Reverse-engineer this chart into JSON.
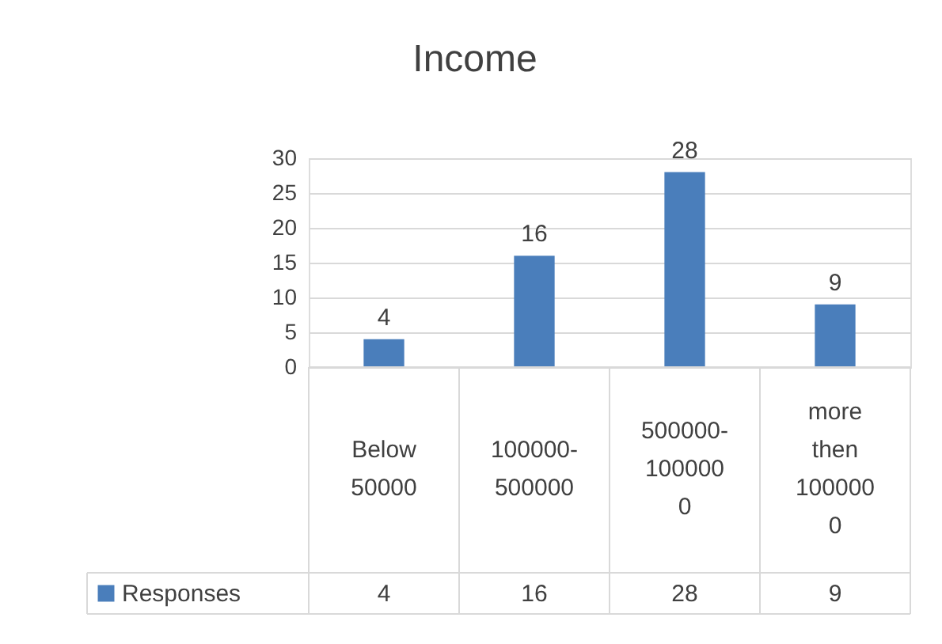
{
  "chart_data": {
    "type": "bar",
    "title": "Income",
    "categories": [
      "Below 50000",
      "100000-500000",
      "500000-1000000",
      "more then 1000000"
    ],
    "series": [
      {
        "name": "Responses",
        "color": "#4a7ebb",
        "values": [
          4,
          16,
          28,
          9
        ],
        "value_labels": [
          "4",
          "16",
          "28",
          "9"
        ]
      }
    ],
    "ylim": [
      0,
      30
    ],
    "yticks": [
      0,
      5,
      10,
      15,
      20,
      25,
      30
    ],
    "grid": "y",
    "data_labels": true,
    "legend": "bottom"
  }
}
